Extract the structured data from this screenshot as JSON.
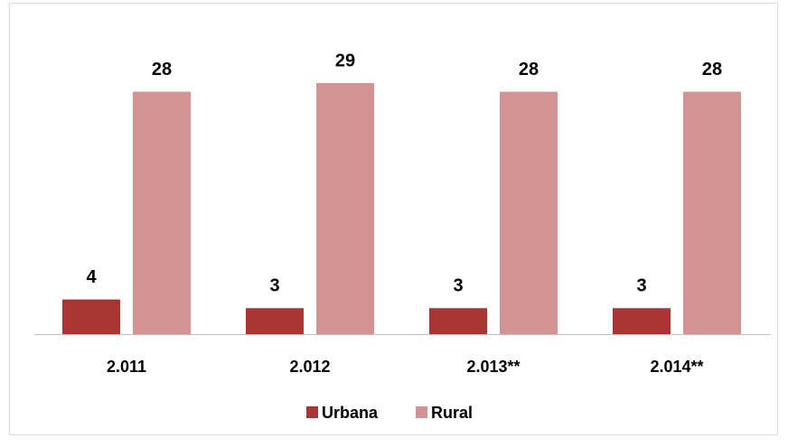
{
  "chart_data": {
    "type": "bar",
    "categories": [
      "2.011",
      "2.012",
      "2.013**",
      "2.014**"
    ],
    "series": [
      {
        "name": "Urbana",
        "color": "#a93434",
        "values": [
          4,
          3,
          3,
          3
        ]
      },
      {
        "name": "Rural",
        "color": "#d49393",
        "values": [
          28,
          29,
          28,
          28
        ]
      }
    ]
  }
}
